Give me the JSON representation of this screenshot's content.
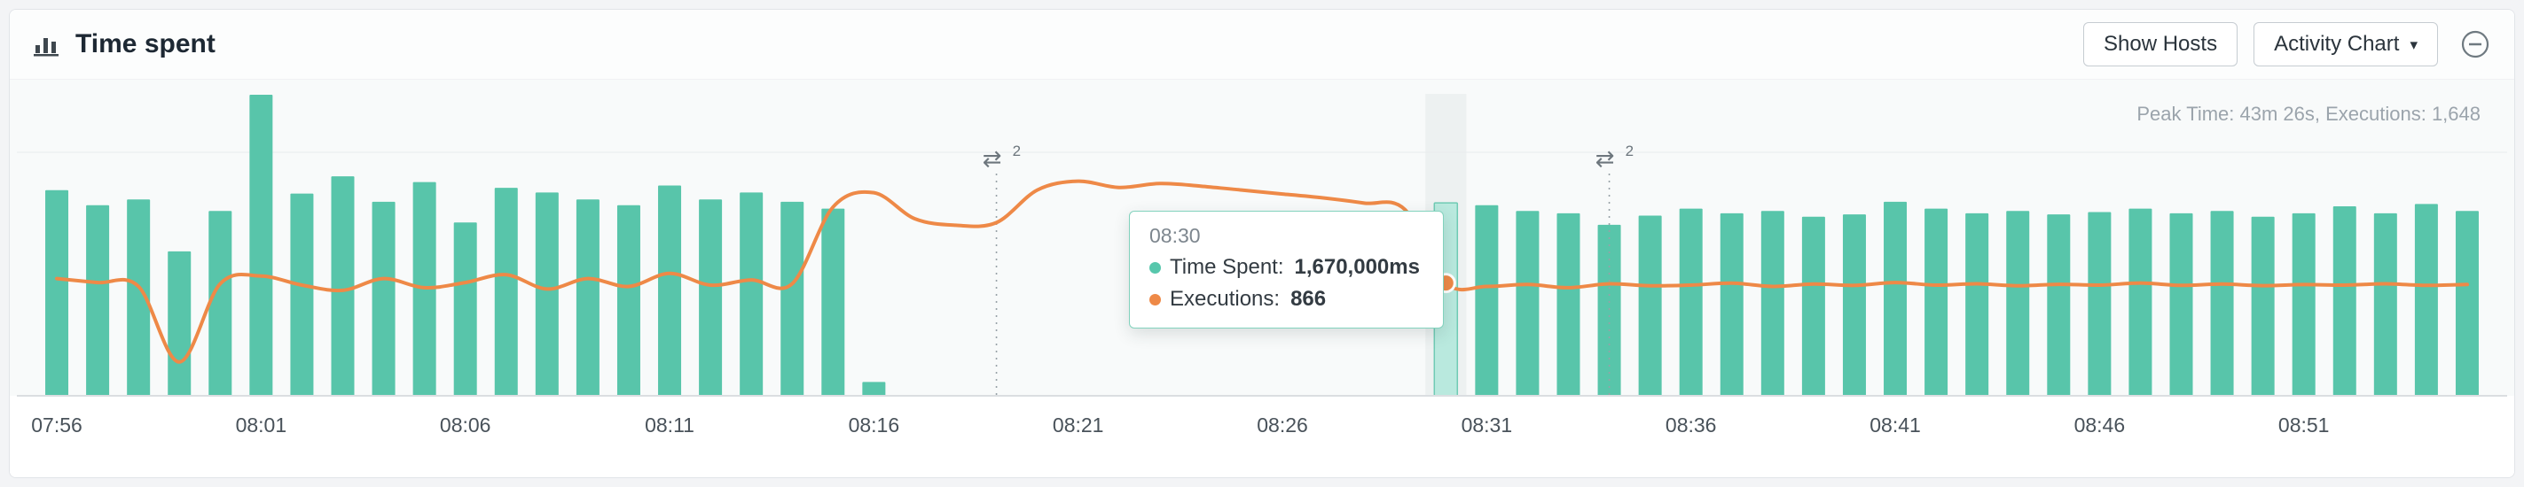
{
  "header": {
    "title": "Time spent",
    "show_hosts_label": "Show Hosts",
    "activity_chart_label": "Activity Chart",
    "caret_glyph": "▾",
    "icons": {
      "panel_icon": "bar-chart-icon",
      "collapse_icon": "circle-minus-icon"
    }
  },
  "summary": {
    "peak_text": "Peak Time: 43m 26s, Executions: 1,648"
  },
  "tooltip": {
    "time": "08:30",
    "time_spent_label": "Time Spent:",
    "time_spent_value": "1,670,000ms",
    "executions_label": "Executions:",
    "executions_value": "866"
  },
  "chart_data": {
    "type": "bar",
    "title": "Time spent",
    "xlabel": "",
    "ylabel": "",
    "legend": "none",
    "grid": "top-gridline-and-baseline",
    "x": [
      "07:56",
      "07:57",
      "07:58",
      "07:59",
      "08:00",
      "08:01",
      "08:02",
      "08:03",
      "08:04",
      "08:05",
      "08:06",
      "08:07",
      "08:08",
      "08:09",
      "08:10",
      "08:11",
      "08:12",
      "08:13",
      "08:14",
      "08:15",
      "08:16",
      "08:17",
      "08:18",
      "08:19",
      "08:20",
      "08:21",
      "08:22",
      "08:23",
      "08:24",
      "08:25",
      "08:26",
      "08:27",
      "08:28",
      "08:29",
      "08:30",
      "08:31",
      "08:32",
      "08:33",
      "08:34",
      "08:35",
      "08:36",
      "08:37",
      "08:38",
      "08:39",
      "08:40",
      "08:41",
      "08:42",
      "08:43",
      "08:44",
      "08:45",
      "08:46",
      "08:47",
      "08:48",
      "08:49",
      "08:50",
      "08:51",
      "08:52",
      "08:53",
      "08:54",
      "08:55"
    ],
    "x_tick_labels": [
      "07:56",
      "08:01",
      "08:06",
      "08:11",
      "08:16",
      "08:21",
      "08:26",
      "08:31",
      "08:36",
      "08:41",
      "08:46",
      "08:51"
    ],
    "series": [
      {
        "name": "Time Spent (ms)",
        "type": "bar",
        "color": "#58c5aa",
        "values": [
          1780000,
          1650000,
          1700000,
          1250000,
          1600000,
          2606000,
          1750000,
          1900000,
          1680000,
          1850000,
          1500000,
          1800000,
          1760000,
          1700000,
          1650000,
          1820000,
          1700000,
          1760000,
          1680000,
          1620000,
          120000,
          0,
          0,
          0,
          0,
          0,
          0,
          0,
          0,
          0,
          0,
          0,
          0,
          0,
          1670000,
          1650000,
          1600000,
          1580000,
          1480000,
          1560000,
          1620000,
          1580000,
          1600000,
          1550000,
          1570000,
          1680000,
          1620000,
          1580000,
          1600000,
          1570000,
          1590000,
          1620000,
          1580000,
          1600000,
          1550000,
          1580000,
          1640000,
          1580000,
          1660000,
          1600000
        ]
      },
      {
        "name": "Executions",
        "type": "line",
        "color": "#ee8947",
        "values": [
          900,
          870,
          840,
          260,
          860,
          920,
          850,
          810,
          900,
          830,
          870,
          930,
          820,
          900,
          840,
          940,
          850,
          890,
          860,
          1450,
          1560,
          1360,
          1310,
          1330,
          1580,
          1648,
          1600,
          1630,
          1610,
          1580,
          1550,
          1520,
          1480,
          1430,
          866,
          840,
          855,
          830,
          860,
          845,
          850,
          865,
          840,
          858,
          848,
          870,
          850,
          860,
          845,
          856,
          850,
          866,
          848,
          858,
          846,
          854,
          850,
          860,
          848,
          855
        ]
      }
    ],
    "y_max_time_spent_ms": 2606000,
    "y_max_executions": 1700,
    "peak_time_spent": "43m 26s",
    "peak_executions": 1648,
    "selected_x": "08:30",
    "selected_time_spent_ms": 1670000,
    "selected_executions": 866,
    "markers": [
      {
        "x": "08:19",
        "count": "2",
        "icon": "swap-arrows-icon"
      },
      {
        "x": "08:34",
        "count": "2",
        "icon": "swap-arrows-icon"
      }
    ],
    "marker_glyph": "⇄",
    "colors": {
      "bar": "#58c5aa",
      "bar_selected": "#b9e9de",
      "bar_selected_stroke": "#6fcbb4",
      "line": "#ee8947",
      "hover_band": "#e8eced",
      "gridline": "#e9ecee",
      "baseline": "#dbdee1",
      "axis_text": "#49525a",
      "marker": "#98a1a7"
    }
  }
}
